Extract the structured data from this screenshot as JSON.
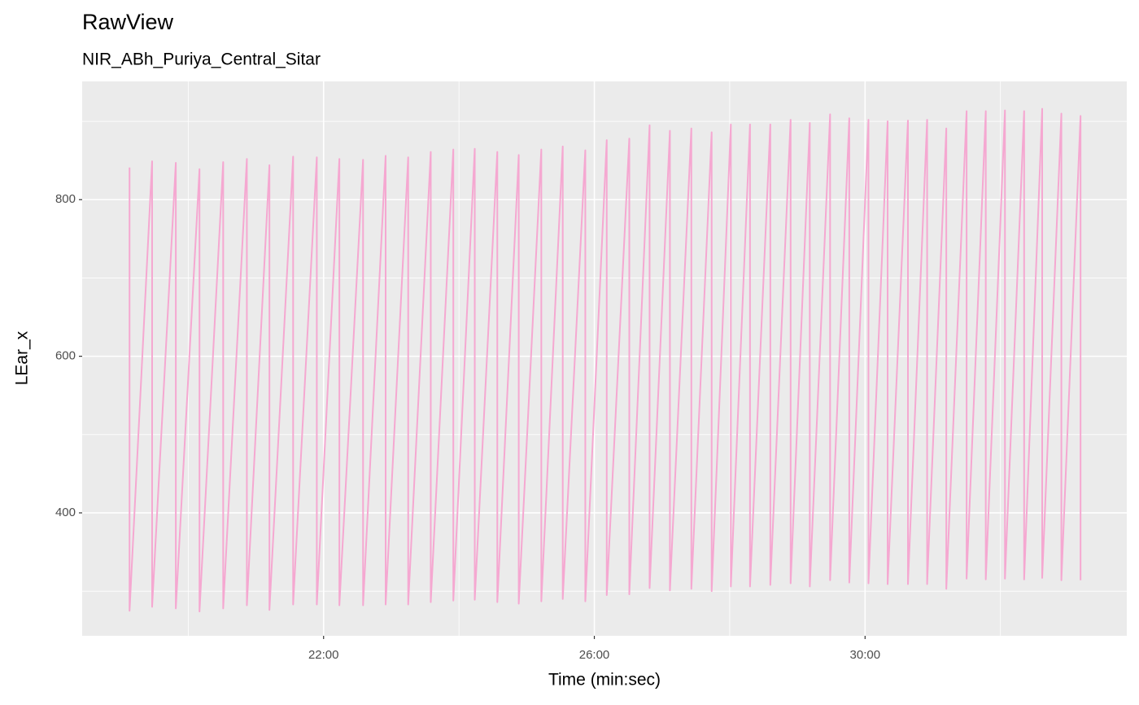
{
  "chart_data": {
    "type": "line",
    "title": "RawView",
    "subtitle": "NIR_ABh_Puriya_Central_Sitar",
    "x_label": "Time (min:sec)",
    "y_label": "LEar_x",
    "xlim": [
      1106,
      2032
    ],
    "ylim": [
      243,
      951
    ],
    "xticks": [
      {
        "value": 1320,
        "label": "22:00"
      },
      {
        "value": 1560,
        "label": "26:00"
      },
      {
        "value": 1800,
        "label": "30:00"
      }
    ],
    "yticks": [
      400,
      600,
      800
    ],
    "grid": true,
    "x": [
      1148,
      1148,
      1168,
      1168,
      1189,
      1189,
      1210,
      1210,
      1231,
      1231,
      1252,
      1252,
      1272,
      1272,
      1293,
      1293,
      1314,
      1314,
      1334,
      1334,
      1355,
      1355,
      1375,
      1375,
      1395,
      1395,
      1415,
      1415,
      1435,
      1435,
      1454,
      1454,
      1474,
      1474,
      1493,
      1493,
      1513,
      1513,
      1532,
      1532,
      1552,
      1552,
      1571,
      1571,
      1591,
      1591,
      1609,
      1609,
      1627,
      1627,
      1646,
      1646,
      1664,
      1664,
      1681,
      1681,
      1698,
      1698,
      1716,
      1716,
      1734,
      1734,
      1751,
      1751,
      1769,
      1769,
      1786,
      1786,
      1803,
      1803,
      1820,
      1820,
      1838,
      1838,
      1855,
      1855,
      1872,
      1872,
      1890,
      1890,
      1907,
      1907,
      1924,
      1924,
      1941,
      1941,
      1957,
      1957,
      1974,
      1974,
      1991,
      1991
    ],
    "series": [
      {
        "name": "LEar_x",
        "color": "#f5a8d1",
        "values": [
          841,
          275,
          849,
          280,
          847,
          278,
          839,
          274,
          848,
          278,
          852,
          282,
          844,
          276,
          855,
          283,
          854,
          283,
          852,
          282,
          851,
          282,
          856,
          283,
          854,
          283,
          861,
          286,
          864,
          288,
          865,
          289,
          861,
          286,
          857,
          284,
          864,
          287,
          868,
          290,
          863,
          287,
          876,
          295,
          878,
          296,
          895,
          304,
          888,
          301,
          891,
          303,
          886,
          300,
          896,
          306,
          896,
          306,
          896,
          308,
          902,
          310,
          898,
          306,
          909,
          314,
          904,
          311,
          902,
          310,
          900,
          309,
          901,
          309,
          902,
          309,
          891,
          303,
          913,
          316,
          913,
          315,
          914,
          316,
          913,
          315,
          916,
          317,
          910,
          314,
          907,
          314
        ]
      }
    ]
  }
}
